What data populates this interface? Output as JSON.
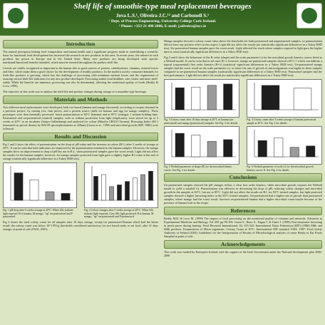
{
  "header": {
    "title": "Shelf life of smoothie-type meal replacement beverages",
    "authors": "Jova L.S.¹, Oliveira J.C.¹² and Carbonell S.¹",
    "affiliation": "¹ Dept. of Process Engineering, University College Cork Ireland.",
    "contact": "² Phone: +353 21 490 2806, E-mail: j.oliveira@ucc.ie"
  },
  "sections": {
    "introduction": "Introduction",
    "materials": "Materials and Methods",
    "results": "Results and Discussion",
    "conclusions": "Conclusions",
    "references": "References",
    "acknowledgements": "Acknowledgements"
  },
  "text": {
    "intro1": "The natural perception linking food composition and human health and a significant progress made in establishing a scientific basis for functional food development has increased the research on new products in this area. In recent years, the interest in such products has grown in Europe and in the United State. Many new products are being developed with specific nutritional/functional benefits intended, which must be ensured throughout the product shelf life.",
    "intro2": "Cereals are widely recognised as important in the human diet as good sources of protein, carbohydrates, vitamins, mineral traces and fibre, which make them a good choice for the development of healthy products. In the modern society consumer demands for fresh-like products is growing, which has the challenge of processing with minimum nutrient losses and the requirement of assuring critical shelf life indicators for any new product developed. Processing makes food healthier, safe, tastier and more shelf-stable. While the benefits are immense, processing can also be detrimental, affecting the nutritional quality of foods (Reddy & Love, 1999).",
    "intro3": "The objective of this work was to analyse the shelf life and product changes during storage of a smoothie-type beverage.",
    "methods1": "Two different meal replacements were developed, both rice based (banana and mango flavoured), according to recipes obtained in a previous project, by mixing rice, fruit pieces, and a protein source (milk for banana and egg for mango samples). These prototypes were then thermally processed: batch pasteurisation at 82°C (banana) and at 85°C (mango), 1 minute holding time. Pasteurised and un-pasteurised (control) samples, with or without protection from light (duplicates), were stored for up to 5 weeks at 20°C in an incubator (Sanyo Gallenkamp) and analysed for colour (Minolta CR310 Chroma), Browning Index (B.I.) (measured as optical density by HACH spectrophotometer at 420nm) (Garza et al., 1999) and microbial growth (IDF, 1986) were followed.",
    "results1": "Fig 1 and 2 show the effect of pasteurisation on the drop of pH value and the increase in colour (B.I.) after 5 weeks of storage at 20°C. It can be seen that both indicators are improved by the pasteurisation treatment in the banana samples. However, the mango samples show an improvement in drop of pH but not in B.I., when pasteurised samples gave the worst result. Light did not affect the results for the banana samples, however, for mango samples protected from light gave a slightly higher B.I value at the end of storage (statistically significant difference in a Tukey HSD test).",
    "fig1cap": "Fig. 1 pH drop after 5 weeks storage at 20°C. White fills indicate light exposed. B is banana, M mango, \"np\" un-pasteurised and P pasteurised.",
    "fig2cap": "Fig. 2 Colour changes after 5 weeks storage at 20°C. White fills indicate light exposed, Grey fills light protected. B is banana, M mango, \"np\" un-pasteurised and P pasteurised.",
    "results2": "Fig 3 shows the total colony count for all samples after 19 days storage, except for pasteurised Banana which had the better result: the colony count was below 10³ CFU/g thresholds considered satisfactory for rice based ready to eat food, after 21 days storage, at point of sale (FSAI, 2001).",
    "col2a": "Mango samples showed a colony count value above the thresholds for both pasteurised and unpasteurised samples, so pasteurisation did not have any positive effect in this aspect. Light did not affect the results (no statistically significant differences in a Tukey HSD test). Un-pasteurised banana samples gave the worst result. Light affected the result where samples exposed to light gave the higher micros count (statistically significant differences in a Tukey HSD test).",
    "col2b": "Fig 5 and 6 show the behaviour of the B value (shape) and the scale parameter (τ) for the microbial growth kinetics curves fitted to a Weibull model. It can be seen that in all cases B>1, however, mango un-pasteurised samples showed a B=1.7 which can indicate a typical (exponential) first order kinetics (B=1) (statistical significant differences in a Tukey HSD test). Un-pasteurised mango samples had the worst result on the scale parameter (τ). to hence the rate of growth of microorganisms was higher in these samples compared to un-pasteurised banana samples (statistically significant differences in a Tukey HSD test). Pasteurised samples had the best performance. Light did not affect the result (no statistically significant differences in a Tukey HSD test).",
    "fig3cap": "Fig. 3 Colony count after 19 days storage at 20°C of banana (un-pasteurised) and mango (pasteurised) samples. See Fig. 2 for details",
    "fig4cap": "Fig. 4 Colony count after 5 weeks storage of banana pasteurised sample at 20°C. See Fig. 2 for details",
    "fig5cap": "Fig. 5 Weibull parameter of shape (B) for the microbial kinetic curves. See Fig. 2 for details",
    "fig6cap": "Fig. 6 Weibull parameter of scale (τ) for the microbial growth kinetics curves N. See Fig. 2 for details",
    "conclusions": "Un-pasteurised samples showed the pH changes follow a clear first order kinetics, while microbial growth requires the Weibull model to yield a suitable fit. Pasteurisation was effective in decreasing the drop of pH, reducing colour changes and microbial growth in the samples at 82°C, but not at 85°C. Light did not affect the results on B.I. for 82°C treated samples, but light protected samples showed a higher browning index in the 85°C treated samples. Un-pasteurised had a higher rate of growth than pasteurised samples, where mango had the worst result, however un-pasteurised banana had a higher microbial count maybe because of the presence of banana fruit in the recipe.",
    "references": "Reddy M.B. & Love M. (1999) The impact of food processing on the nutritional quality of vitamins and minerals. Advances in Experimental Medicine and Biology, Vol 459, pp 99-106. Garza S., Ibarz A., Pagan J. & Giner J. (1999) Non-enzymatic browning in peach puree during heating. Food Research International, 32, 335-343. International Dairy Federation (IDF) (1986) Milk and Milk products. Enumeration of Micro-organisms. Colony Count at 30°C. International IDF standard 100A. 1987. Food Safety Authority of Ireland (2001) Guidelines for the Interpretation of Results of Microbiological analysis of some Ready to Eat Foods Sampled at point of sale.",
    "acknowledgements": "This work was funded by Enterprise Ireland, with the support of the Irish Government under the National development plan 2000-2006"
  },
  "colors": {
    "header": "#2f5a1e",
    "section_head": "#9fb97a",
    "background": "#dde6c4",
    "bar_dark": "#1e1e1e",
    "bar_grey": "#9a9a9a",
    "bar_white": "#ffffff"
  },
  "chart_data": [
    {
      "type": "bar",
      "id": "fig1",
      "values": [
        1.6,
        1.2,
        0.5,
        0.4
      ],
      "ylim": [
        0,
        2
      ]
    },
    {
      "type": "bar",
      "id": "fig2",
      "values": [
        0.28,
        0.3,
        0.16,
        0.18,
        0.22,
        0.26,
        0.3,
        0.34
      ],
      "ylim": [
        0,
        0.4
      ]
    },
    {
      "type": "bar",
      "id": "fig3",
      "values": [
        6.5,
        6.7,
        7.2,
        7.6
      ],
      "ylim": [
        0,
        8
      ]
    },
    {
      "type": "bar",
      "id": "fig4",
      "values": [
        1.8,
        1.6
      ],
      "ylim": [
        0,
        2
      ]
    },
    {
      "type": "bar",
      "id": "fig5",
      "values": [
        2.6,
        2.4,
        1.7,
        1.9
      ],
      "ylim": [
        0,
        3
      ]
    },
    {
      "type": "bar",
      "id": "fig6",
      "values": [
        0.6,
        0.7,
        0.35,
        0.4
      ],
      "ylim": [
        0,
        1
      ]
    }
  ]
}
